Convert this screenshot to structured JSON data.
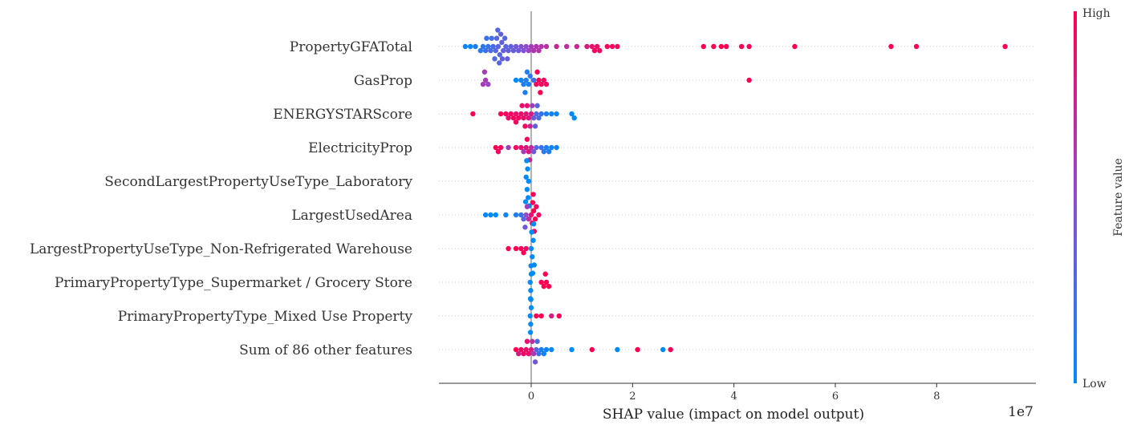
{
  "chart_data": {
    "type": "scatter",
    "subtype": "shap-beeswarm",
    "features": [
      {
        "name": "PropertyGFATotal",
        "points": [
          [
            -0.65,
            0.3
          ],
          [
            -0.62,
            0.3
          ],
          [
            -0.58,
            0.35
          ],
          [
            -0.7,
            0.3
          ],
          [
            -0.75,
            0.25
          ],
          [
            -0.55,
            0.35
          ],
          [
            -0.5,
            0.3
          ],
          [
            -0.8,
            0.25
          ],
          [
            -0.85,
            0.2
          ],
          [
            -0.9,
            0.2
          ],
          [
            -0.95,
            0.15
          ],
          [
            -1.0,
            0.15
          ],
          [
            -1.1,
            0.1
          ],
          [
            -1.2,
            0.05
          ],
          [
            -1.3,
            0.05
          ],
          [
            -0.45,
            0.35
          ],
          [
            -0.4,
            0.35
          ],
          [
            -0.35,
            0.35
          ],
          [
            -0.3,
            0.4
          ],
          [
            -0.25,
            0.4
          ],
          [
            -0.2,
            0.45
          ],
          [
            -0.15,
            0.45
          ],
          [
            -0.1,
            0.5
          ],
          [
            -0.05,
            0.55
          ],
          [
            0.0,
            0.6
          ],
          [
            0.05,
            0.65
          ],
          [
            0.1,
            0.65
          ],
          [
            0.15,
            0.65
          ],
          [
            0.2,
            0.65
          ],
          [
            0.3,
            0.7
          ],
          [
            0.5,
            0.75
          ],
          [
            0.7,
            0.7
          ],
          [
            0.9,
            0.75
          ],
          [
            1.1,
            0.85
          ],
          [
            1.2,
            0.9
          ],
          [
            1.25,
            0.95
          ],
          [
            1.3,
            0.9
          ],
          [
            1.35,
            0.95
          ],
          [
            1.5,
            0.95
          ],
          [
            1.6,
            0.95
          ],
          [
            1.7,
            0.95
          ],
          [
            3.4,
            1.0
          ],
          [
            3.6,
            1.0
          ],
          [
            3.75,
            1.0
          ],
          [
            3.85,
            1.0
          ],
          [
            4.15,
            1.0
          ],
          [
            4.3,
            1.0
          ],
          [
            5.2,
            1.0
          ],
          [
            7.1,
            1.0
          ],
          [
            7.6,
            1.0
          ],
          [
            9.35,
            1.0
          ],
          [
            -0.68,
            0.3
          ],
          [
            -0.6,
            0.35
          ],
          [
            -0.72,
            0.3
          ],
          [
            -0.52,
            0.3
          ],
          [
            -0.78,
            0.25
          ],
          [
            -0.63,
            0.3
          ],
          [
            -0.57,
            0.35
          ],
          [
            -0.47,
            0.35
          ],
          [
            -0.88,
            0.2
          ],
          [
            -0.66,
            0.3
          ]
        ]
      },
      {
        "name": "GasProp",
        "points": [
          [
            -0.9,
            0.6
          ],
          [
            -0.95,
            0.6
          ],
          [
            -0.85,
            0.55
          ],
          [
            -0.92,
            0.6
          ],
          [
            -0.3,
            0.0
          ],
          [
            -0.1,
            0.1
          ],
          [
            -0.05,
            0.1
          ],
          [
            -0.15,
            0.1
          ],
          [
            -0.2,
            0.05
          ],
          [
            -0.08,
            0.1
          ],
          [
            -0.12,
            0.1
          ],
          [
            -0.02,
            0.15
          ],
          [
            0.05,
            0.2
          ],
          [
            0.1,
            0.95
          ],
          [
            0.15,
            0.95
          ],
          [
            0.2,
            0.95
          ],
          [
            0.25,
            0.95
          ],
          [
            0.3,
            0.95
          ],
          [
            0.12,
            1.0
          ],
          [
            0.18,
            1.0
          ],
          [
            4.3,
            1.0
          ]
        ]
      },
      {
        "name": "ENERGYSTARScore",
        "points": [
          [
            -1.15,
            1.0
          ],
          [
            -0.5,
            0.95
          ],
          [
            -0.4,
            0.95
          ],
          [
            -0.3,
            0.9
          ],
          [
            -0.2,
            0.9
          ],
          [
            -0.15,
            0.9
          ],
          [
            -0.1,
            0.85
          ],
          [
            -0.05,
            0.85
          ],
          [
            0.0,
            0.8
          ],
          [
            -0.3,
            0.95
          ],
          [
            -0.45,
            0.9
          ],
          [
            -0.25,
            0.95
          ],
          [
            -0.08,
            0.9
          ],
          [
            -0.02,
            0.75
          ],
          [
            0.02,
            0.6
          ],
          [
            0.05,
            0.4
          ],
          [
            0.1,
            0.3
          ],
          [
            0.15,
            0.25
          ],
          [
            0.2,
            0.2
          ],
          [
            0.3,
            0.1
          ],
          [
            0.4,
            0.05
          ],
          [
            0.5,
            0.05
          ],
          [
            0.8,
            0.0
          ],
          [
            0.85,
            0.0
          ],
          [
            -0.12,
            0.95
          ],
          [
            -0.35,
            0.95
          ],
          [
            0.08,
            0.35
          ],
          [
            -0.18,
            0.9
          ],
          [
            0.12,
            0.3
          ],
          [
            -0.6,
            1.0
          ]
        ]
      },
      {
        "name": "ElectricityProp",
        "points": [
          [
            -0.7,
            1.0
          ],
          [
            -0.65,
            0.95
          ],
          [
            -0.6,
            0.95
          ],
          [
            -0.3,
            0.95
          ],
          [
            -0.2,
            0.9
          ],
          [
            -0.1,
            0.85
          ],
          [
            -0.05,
            0.85
          ],
          [
            0.0,
            0.7
          ],
          [
            0.05,
            0.4
          ],
          [
            0.1,
            0.3
          ],
          [
            0.2,
            0.2
          ],
          [
            0.3,
            0.1
          ],
          [
            0.4,
            0.05
          ],
          [
            0.5,
            0.05
          ],
          [
            -0.45,
            0.6
          ],
          [
            -0.15,
            0.6
          ],
          [
            -0.08,
            0.95
          ],
          [
            0.25,
            0.15
          ],
          [
            0.35,
            0.1
          ],
          [
            -0.03,
            0.8
          ]
        ]
      },
      {
        "name": "SecondLargestPropertyUseType_Laboratory",
        "points": [
          [
            -0.05,
            0.0
          ],
          [
            -0.08,
            0.0
          ],
          [
            -0.1,
            0.0
          ],
          [
            -0.07,
            0.0
          ],
          [
            -0.06,
            0.0
          ],
          [
            -0.09,
            0.0
          ],
          [
            -0.04,
            0.0
          ],
          [
            -0.11,
            0.0
          ]
        ]
      },
      {
        "name": "LargestUsedArea",
        "points": [
          [
            -0.9,
            0.0
          ],
          [
            -0.8,
            0.0
          ],
          [
            -0.7,
            0.0
          ],
          [
            -0.5,
            0.05
          ],
          [
            -0.3,
            0.1
          ],
          [
            -0.2,
            0.2
          ],
          [
            -0.15,
            0.3
          ],
          [
            -0.1,
            0.5
          ],
          [
            -0.05,
            0.7
          ],
          [
            0.0,
            0.9
          ],
          [
            0.02,
            1.0
          ],
          [
            0.05,
            1.0
          ],
          [
            0.08,
            1.0
          ],
          [
            0.1,
            0.95
          ],
          [
            0.15,
            0.95
          ],
          [
            0.03,
            1.0
          ],
          [
            0.06,
            1.0
          ],
          [
            -0.08,
            0.6
          ],
          [
            -0.12,
            0.4
          ],
          [
            0.04,
            1.0
          ]
        ]
      },
      {
        "name": "LargestPropertyUseType_Non-Refrigerated Warehouse",
        "points": [
          [
            -0.45,
            1.0
          ],
          [
            -0.3,
            1.0
          ],
          [
            -0.2,
            1.0
          ],
          [
            -0.15,
            1.0
          ],
          [
            -0.1,
            0.95
          ],
          [
            0.0,
            0.0
          ],
          [
            0.02,
            0.0
          ],
          [
            0.04,
            0.0
          ],
          [
            0.06,
            0.0
          ],
          [
            0.01,
            0.0
          ],
          [
            0.03,
            0.0
          ],
          [
            0.05,
            0.0
          ]
        ]
      },
      {
        "name": "PrimaryPropertyType_Supermarket / Grocery Store",
        "points": [
          [
            -0.02,
            0.0
          ],
          [
            -0.01,
            0.0
          ],
          [
            0.0,
            0.0
          ],
          [
            -0.015,
            0.0
          ],
          [
            -0.005,
            0.0
          ],
          [
            0.2,
            1.0
          ],
          [
            0.25,
            1.0
          ],
          [
            0.3,
            1.0
          ],
          [
            0.35,
            1.0
          ],
          [
            0.28,
            1.0
          ]
        ]
      },
      {
        "name": "PrimaryPropertyType_Mixed Use Property",
        "points": [
          [
            -0.02,
            0.0
          ],
          [
            -0.01,
            0.0
          ],
          [
            0.0,
            0.0
          ],
          [
            -0.015,
            0.0
          ],
          [
            -0.005,
            0.0
          ],
          [
            0.1,
            1.0
          ],
          [
            0.2,
            1.0
          ],
          [
            0.4,
            0.8
          ],
          [
            0.55,
            1.0
          ]
        ]
      },
      {
        "name": "Sum of 86 other features",
        "points": [
          [
            -0.3,
            1.0
          ],
          [
            -0.2,
            0.95
          ],
          [
            -0.1,
            0.9
          ],
          [
            -0.05,
            0.9
          ],
          [
            0.0,
            0.8
          ],
          [
            0.05,
            0.6
          ],
          [
            0.1,
            0.3
          ],
          [
            0.15,
            0.2
          ],
          [
            0.2,
            0.1
          ],
          [
            0.3,
            0.05
          ],
          [
            0.4,
            0.0
          ],
          [
            0.8,
            0.0
          ],
          [
            1.2,
            1.0
          ],
          [
            1.7,
            0.0
          ],
          [
            2.1,
            1.0
          ],
          [
            2.6,
            0.0
          ],
          [
            2.75,
            1.0
          ],
          [
            -0.15,
            0.95
          ],
          [
            -0.08,
            0.9
          ],
          [
            0.02,
            0.7
          ],
          [
            0.08,
            0.4
          ],
          [
            0.12,
            0.25
          ],
          [
            -0.25,
            0.8
          ],
          [
            0.25,
            0.05
          ]
        ]
      }
    ],
    "xlabel": "SHAP value (impact on model output)",
    "x_scale_note": "1e7",
    "xlim": [
      -1.8,
      9.9
    ],
    "xticks": [
      0,
      2,
      4,
      6,
      8
    ],
    "colorbar": {
      "title": "Feature value",
      "high_label": "High",
      "low_label": "Low"
    },
    "colors": {
      "low": "#008bfb",
      "high": "#ff0052",
      "zero_line": "#999999",
      "axis": "#333333",
      "grid": "#cccccc"
    }
  }
}
